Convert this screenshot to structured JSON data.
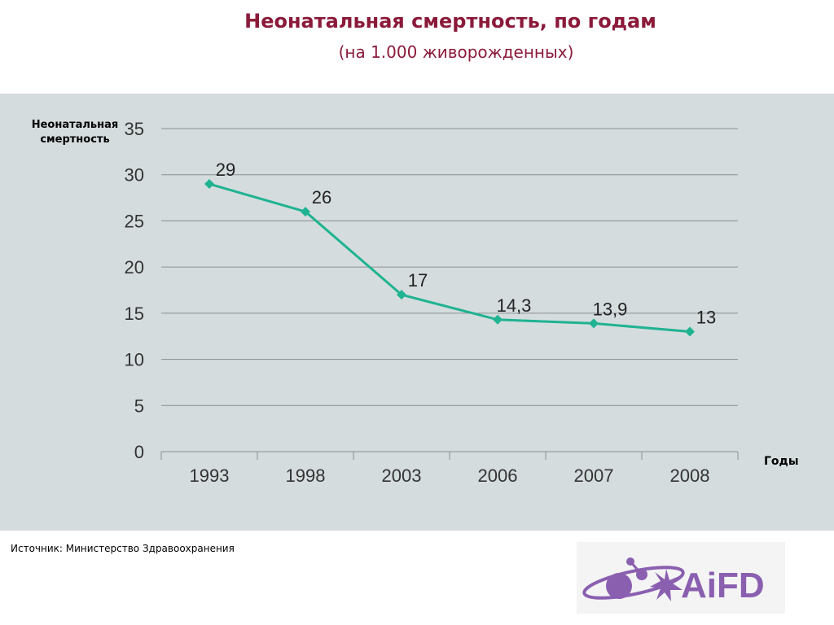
{
  "header": {
    "title": "Неонатальная смертность, по годам",
    "subtitle": "(на 1.000 живорожденных)"
  },
  "footer": {
    "source": "Источник: Министерство Здравоохранения",
    "logo_text": "AiFD"
  },
  "colors": {
    "title": "#8b1a3a",
    "series": "#1fb391",
    "panel_bg": "#d5dcde",
    "logo_purple": "#8a5fb0"
  },
  "chart_data": {
    "type": "line",
    "title": "Неонатальная смертность, по годам",
    "subtitle": "(на 1.000 живорожденных)",
    "xlabel": "Годы",
    "ylabel": "Неонатальная смертность",
    "categories": [
      "1993",
      "1998",
      "2003",
      "2006",
      "2007",
      "2008"
    ],
    "series": [
      {
        "values": [
          29,
          26,
          17,
          14.3,
          13.9,
          13
        ],
        "labels": [
          "29",
          "26",
          "17",
          "14,3",
          "13,9",
          "13"
        ]
      }
    ],
    "ylim": [
      0,
      35
    ],
    "yticks": [
      0,
      5,
      10,
      15,
      20,
      25,
      30,
      35
    ],
    "grid": true,
    "legend": "none"
  }
}
